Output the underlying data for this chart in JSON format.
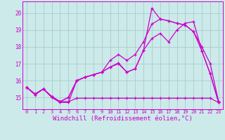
{
  "background_color": "#cceaea",
  "grid_color": "#aacccc",
  "line_color": "#cc00cc",
  "xlabel": "Windchill (Refroidissement éolien,°C)",
  "xlabel_fontsize": 6.5,
  "xtick_labels": [
    "0",
    "1",
    "2",
    "3",
    "4",
    "5",
    "6",
    "7",
    "8",
    "9",
    "10",
    "11",
    "12",
    "13",
    "14",
    "15",
    "16",
    "17",
    "18",
    "19",
    "20",
    "21",
    "22",
    "23"
  ],
  "ytick_labels": [
    "15",
    "16",
    "17",
    "18",
    "19",
    "20"
  ],
  "yticks": [
    15,
    16,
    17,
    18,
    19,
    20
  ],
  "xlim": [
    -0.5,
    23.5
  ],
  "ylim": [
    14.3,
    20.7
  ],
  "line_a_x": [
    0,
    1,
    2,
    3,
    4,
    5,
    6,
    7,
    8,
    9,
    10,
    11,
    12,
    13,
    14,
    15,
    16,
    17,
    18,
    19,
    20,
    21,
    22,
    23
  ],
  "line_a_y": [
    15.6,
    15.2,
    15.5,
    15.0,
    14.7,
    14.7,
    16.0,
    16.2,
    16.35,
    16.5,
    16.8,
    17.0,
    16.5,
    16.7,
    17.8,
    18.5,
    18.8,
    18.3,
    19.0,
    19.4,
    19.5,
    17.75,
    16.4,
    14.7
  ],
  "line_b_x": [
    0,
    1,
    2,
    3,
    4,
    5,
    6,
    7,
    8,
    9,
    10,
    11,
    12,
    13,
    14,
    15,
    16,
    17,
    18,
    19,
    20,
    21,
    22,
    23
  ],
  "line_b_y": [
    15.6,
    15.2,
    15.5,
    15.05,
    14.75,
    15.0,
    16.0,
    16.2,
    16.35,
    16.5,
    17.2,
    17.55,
    17.2,
    17.55,
    18.3,
    19.35,
    19.65,
    19.55,
    19.4,
    19.3,
    18.9,
    18.0,
    17.0,
    14.75
  ],
  "line_c_x": [
    0,
    1,
    2,
    3,
    4,
    5,
    6,
    7,
    8,
    9,
    10,
    11,
    12,
    13,
    14,
    15,
    16,
    17,
    18,
    19,
    20,
    21,
    22,
    23
  ],
  "line_c_y": [
    15.6,
    15.2,
    15.5,
    15.05,
    14.75,
    15.0,
    16.0,
    16.2,
    16.35,
    16.5,
    16.8,
    17.05,
    16.5,
    16.7,
    17.8,
    20.3,
    19.65,
    19.55,
    19.4,
    19.3,
    18.9,
    17.75,
    16.4,
    14.7
  ],
  "line_d_x": [
    0,
    1,
    2,
    3,
    4,
    5,
    6,
    7,
    8,
    9,
    10,
    11,
    12,
    13,
    14,
    15,
    16,
    17,
    18,
    19,
    20,
    21,
    22,
    23
  ],
  "line_d_y": [
    15.6,
    15.15,
    15.5,
    15.05,
    14.75,
    14.75,
    14.95,
    14.95,
    14.95,
    14.95,
    14.95,
    14.95,
    14.95,
    14.95,
    14.95,
    14.95,
    14.95,
    14.95,
    14.95,
    14.95,
    14.95,
    14.95,
    14.95,
    14.7
  ]
}
